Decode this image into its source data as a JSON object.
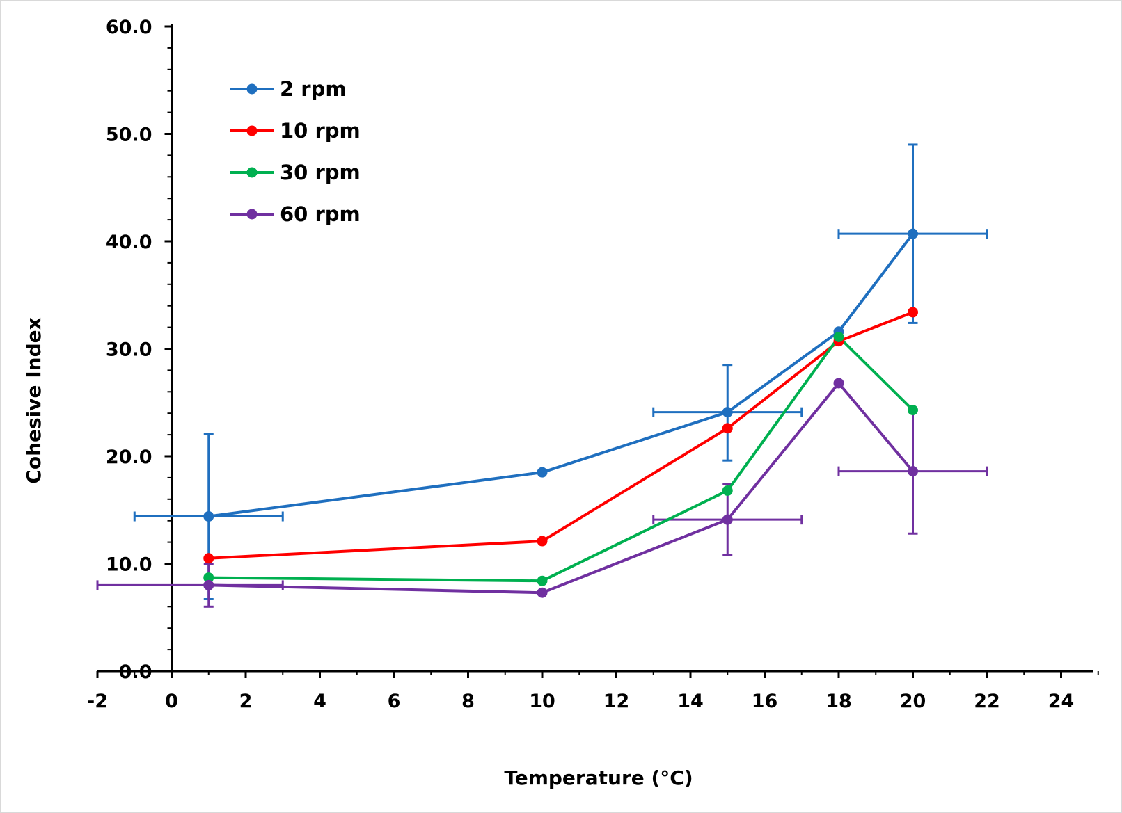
{
  "chart_data": {
    "type": "line",
    "title": "",
    "xlabel": "Temperature (°C)",
    "ylabel": "Cohesive Index",
    "xlim": [
      -2,
      25
    ],
    "ylim": [
      0,
      60
    ],
    "x_ticks": [
      -2,
      0,
      2,
      4,
      6,
      8,
      10,
      12,
      14,
      16,
      18,
      20,
      22,
      24
    ],
    "x_tick_labels": [
      "-2",
      "0",
      "2",
      "4",
      "6",
      "8",
      "10",
      "12",
      "14",
      "16",
      "18",
      "20",
      "22",
      "24"
    ],
    "y_ticks": [
      0,
      10,
      20,
      30,
      40,
      50,
      60
    ],
    "y_tick_labels": [
      "0.0",
      "10.0",
      "20.0",
      "30.0",
      "40.0",
      "50.0",
      "60.0"
    ],
    "grid": false,
    "legend_position": "top-left",
    "x": [
      1,
      10,
      15,
      18,
      20
    ],
    "series": [
      {
        "name": "2 rpm",
        "color": "#1f6fbf",
        "values": [
          14.4,
          18.5,
          24.1,
          31.6,
          40.7
        ],
        "error_y": [
          {
            "x": 1,
            "low": 6.7,
            "high": 22.1
          },
          {
            "x": 15,
            "low": 19.6,
            "high": 28.5
          },
          {
            "x": 20,
            "low": 32.4,
            "high": 49.0
          }
        ],
        "error_x": [
          {
            "y": 14.4,
            "low": -1,
            "high": 3
          },
          {
            "y": 24.1,
            "low": 13,
            "high": 17
          },
          {
            "y": 40.7,
            "low": 18,
            "high": 22
          }
        ]
      },
      {
        "name": "10 rpm",
        "color": "#ff0000",
        "values": [
          10.5,
          12.1,
          22.6,
          30.7,
          33.4
        ],
        "error_y": [],
        "error_x": []
      },
      {
        "name": "30 rpm",
        "color": "#00b050",
        "values": [
          8.7,
          8.4,
          16.8,
          31.1,
          24.3
        ],
        "error_y": [],
        "error_x": []
      },
      {
        "name": "60 rpm",
        "color": "#7030a0",
        "values": [
          8.0,
          7.3,
          14.1,
          26.8,
          18.6
        ],
        "error_y": [
          {
            "x": 1,
            "low": 6.0,
            "high": 10.0
          },
          {
            "x": 15,
            "low": 10.8,
            "high": 17.4
          },
          {
            "x": 20,
            "low": 12.8,
            "high": 24.3
          }
        ],
        "error_x": [
          {
            "y": 8.0,
            "low": -2,
            "high": 3
          },
          {
            "y": 14.1,
            "low": 13,
            "high": 17
          },
          {
            "y": 18.6,
            "low": 18,
            "high": 22
          }
        ]
      }
    ]
  }
}
